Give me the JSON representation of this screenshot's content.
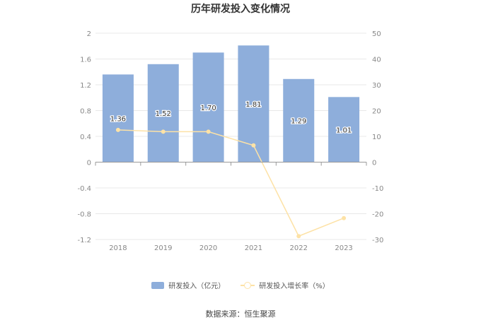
{
  "title": "历年研发投入变化情况",
  "source": "数据来源：恒生聚源",
  "legend": {
    "bar_label": "研发投入（亿元）",
    "line_label": "研发投入增长率（%）"
  },
  "colors": {
    "bar": "#8eaedb",
    "line": "#fde2a6",
    "grid": "#e8e8e8",
    "axis_text": "#888888",
    "data_label": "#333333"
  },
  "chart_data": {
    "type": "bar",
    "title": "历年研发投入变化情况",
    "categories": [
      "2018",
      "2019",
      "2020",
      "2021",
      "2022",
      "2023"
    ],
    "series": [
      {
        "name": "研发投入（亿元）",
        "type": "bar",
        "axis": "left",
        "values": [
          1.36,
          1.52,
          1.7,
          1.81,
          1.29,
          1.01
        ],
        "labels": [
          "1.36",
          "1.52",
          "1.70",
          "1.81",
          "1.29",
          "1.01"
        ]
      },
      {
        "name": "研发投入增长率（%）",
        "type": "line",
        "axis": "right",
        "values": [
          12.5,
          11.8,
          11.8,
          6.5,
          -28.7,
          -21.7
        ]
      }
    ],
    "y_left": {
      "min": -1.2,
      "max": 2,
      "ticks": [
        "2",
        "1.6",
        "1.2",
        "0.8",
        "0.4",
        "0",
        "-0.4",
        "-0.8",
        "-1.2"
      ]
    },
    "y_right": {
      "min": -30,
      "max": 50,
      "ticks": [
        "50",
        "40",
        "30",
        "20",
        "10",
        "0",
        "-10",
        "-20",
        "-30"
      ]
    },
    "grid": true,
    "legend_position": "bottom"
  }
}
